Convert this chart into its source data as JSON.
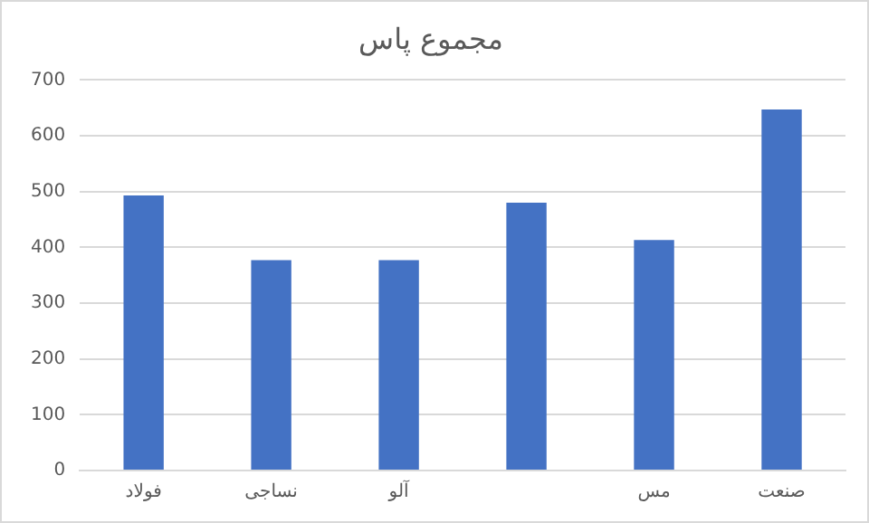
{
  "chart_data": {
    "type": "bar",
    "title": "مجموع پاس",
    "categories": [
      "فولاد",
      "نساجی",
      "آلو",
      null,
      "مس",
      "صنعت"
    ],
    "values": [
      493,
      377,
      377,
      480,
      413,
      647
    ],
    "color": "#4472c4",
    "ylim": [
      0,
      700
    ],
    "yticks": [
      0,
      100,
      200,
      300,
      400,
      500,
      600,
      700
    ],
    "grid": "y",
    "legend": false
  }
}
